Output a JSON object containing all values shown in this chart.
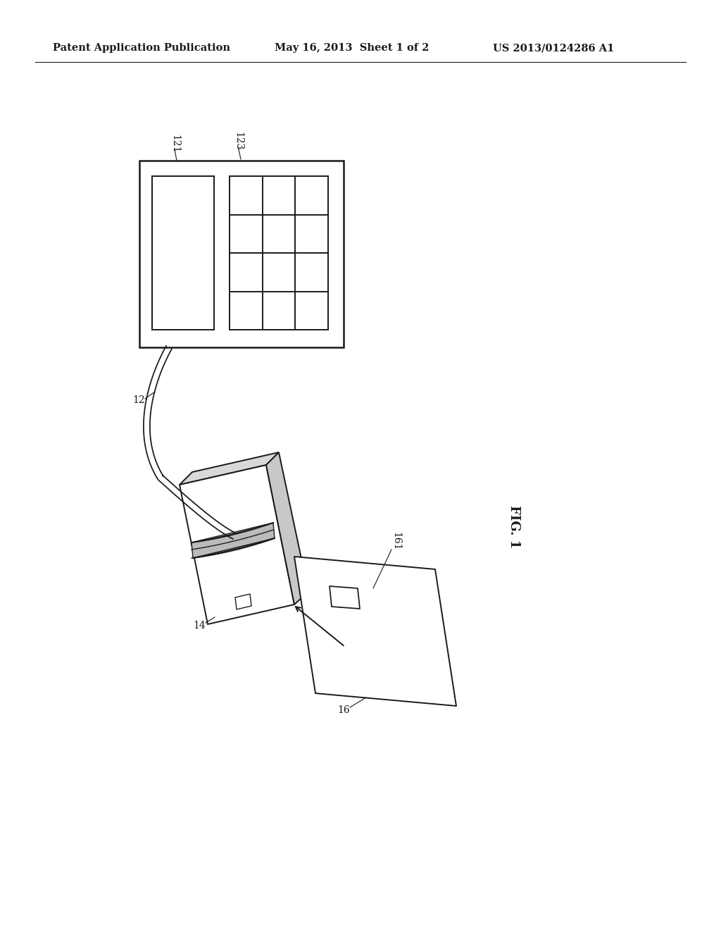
{
  "bg_color": "#ffffff",
  "line_color": "#1a1a1a",
  "header_left": "Patent Application Publication",
  "header_mid": "May 16, 2013  Sheet 1 of 2",
  "header_right": "US 2013/0124286 A1",
  "fig_label": "FIG. 1",
  "lw": 1.4
}
